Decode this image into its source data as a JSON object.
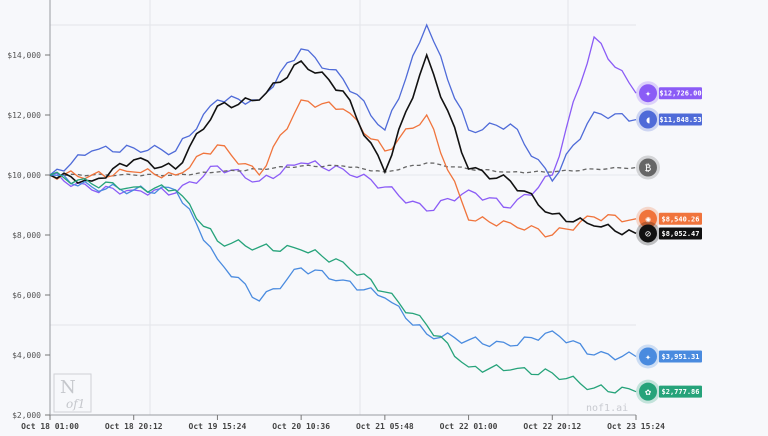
{
  "chart_data": {
    "type": "line",
    "title": "",
    "xlabel": "",
    "ylabel": "",
    "ylim": [
      2000,
      15000
    ],
    "y_ticks": [
      "$2,000",
      "$4,000",
      "$6,000",
      "$8,000",
      "$10,000",
      "$12,000",
      "$14,000"
    ],
    "y_tick_values": [
      2000,
      4000,
      6000,
      8000,
      10000,
      12000,
      14000
    ],
    "x_ticks": [
      "Oct 18 01:00",
      "Oct 18 20:12",
      "Oct 19 15:24",
      "Oct 20 10:36",
      "Oct 21 05:48",
      "Oct 22 01:00",
      "Oct 22 20:12",
      "Oct 23 15:24"
    ],
    "grid": true,
    "legend_position": "end-of-line labels",
    "watermark": "nof1.ai",
    "logo": "N of1",
    "x": [
      "Oct 18 01:00",
      "Oct 18 10:36",
      "Oct 18 20:12",
      "Oct 19 05:48",
      "Oct 19 15:24",
      "Oct 20 01:00",
      "Oct 20 10:36",
      "Oct 20 20:12",
      "Oct 21 05:48",
      "Oct 21 15:24",
      "Oct 22 01:00",
      "Oct 22 10:36",
      "Oct 22 20:12",
      "Oct 23 05:48",
      "Oct 23 15:24"
    ],
    "series": [
      {
        "name": "Qwen",
        "color": "#8b5cf6",
        "icon": "qwen-icon",
        "final_label": "$12,726.00",
        "values": [
          10000,
          9500,
          9500,
          9400,
          10300,
          9800,
          10400,
          10200,
          9600,
          8800,
          9500,
          8900,
          10000,
          14600,
          12726
        ]
      },
      {
        "name": "DeepSeek",
        "color": "#4f6bd8",
        "icon": "deepseek-icon",
        "final_label": "$11,848.53",
        "values": [
          10000,
          10800,
          10900,
          10800,
          12500,
          12500,
          14200,
          13200,
          11500,
          15000,
          11500,
          11700,
          9800,
          12100,
          11848
        ]
      },
      {
        "name": "Buy & Hold",
        "color": "#666666",
        "icon": "btc-icon",
        "final_label": "",
        "values": [
          10000,
          10000,
          10000,
          10000,
          10100,
          10200,
          10300,
          10300,
          10100,
          10400,
          10200,
          10100,
          10100,
          10200,
          10250
        ]
      },
      {
        "name": "Claude",
        "color": "#f0743c",
        "icon": "claude-icon",
        "final_label": "$8,540.26",
        "values": [
          10000,
          10000,
          10100,
          10000,
          11000,
          10000,
          12500,
          12200,
          10800,
          12000,
          8500,
          8400,
          8000,
          8600,
          8540
        ]
      },
      {
        "name": "Grok",
        "color": "#111111",
        "icon": "grok-icon",
        "final_label": "$8,052.47",
        "values": [
          10000,
          9800,
          10500,
          10200,
          12300,
          12500,
          13800,
          12800,
          10100,
          14000,
          10200,
          9800,
          8700,
          8300,
          8052
        ]
      },
      {
        "name": "Gemini",
        "color": "#4a8bdf",
        "icon": "gemini-icon",
        "final_label": "$3,951.31",
        "values": [
          10000,
          9600,
          9500,
          9500,
          7200,
          5800,
          6900,
          6500,
          5900,
          4700,
          4500,
          4300,
          4800,
          4000,
          3951
        ]
      },
      {
        "name": "GPT",
        "color": "#26a37a",
        "icon": "openai-icon",
        "final_label": "$2,777.86",
        "values": [
          10000,
          9700,
          9600,
          9500,
          7800,
          7600,
          7500,
          7100,
          6100,
          5000,
          3600,
          3500,
          3400,
          2900,
          2778
        ]
      }
    ]
  }
}
